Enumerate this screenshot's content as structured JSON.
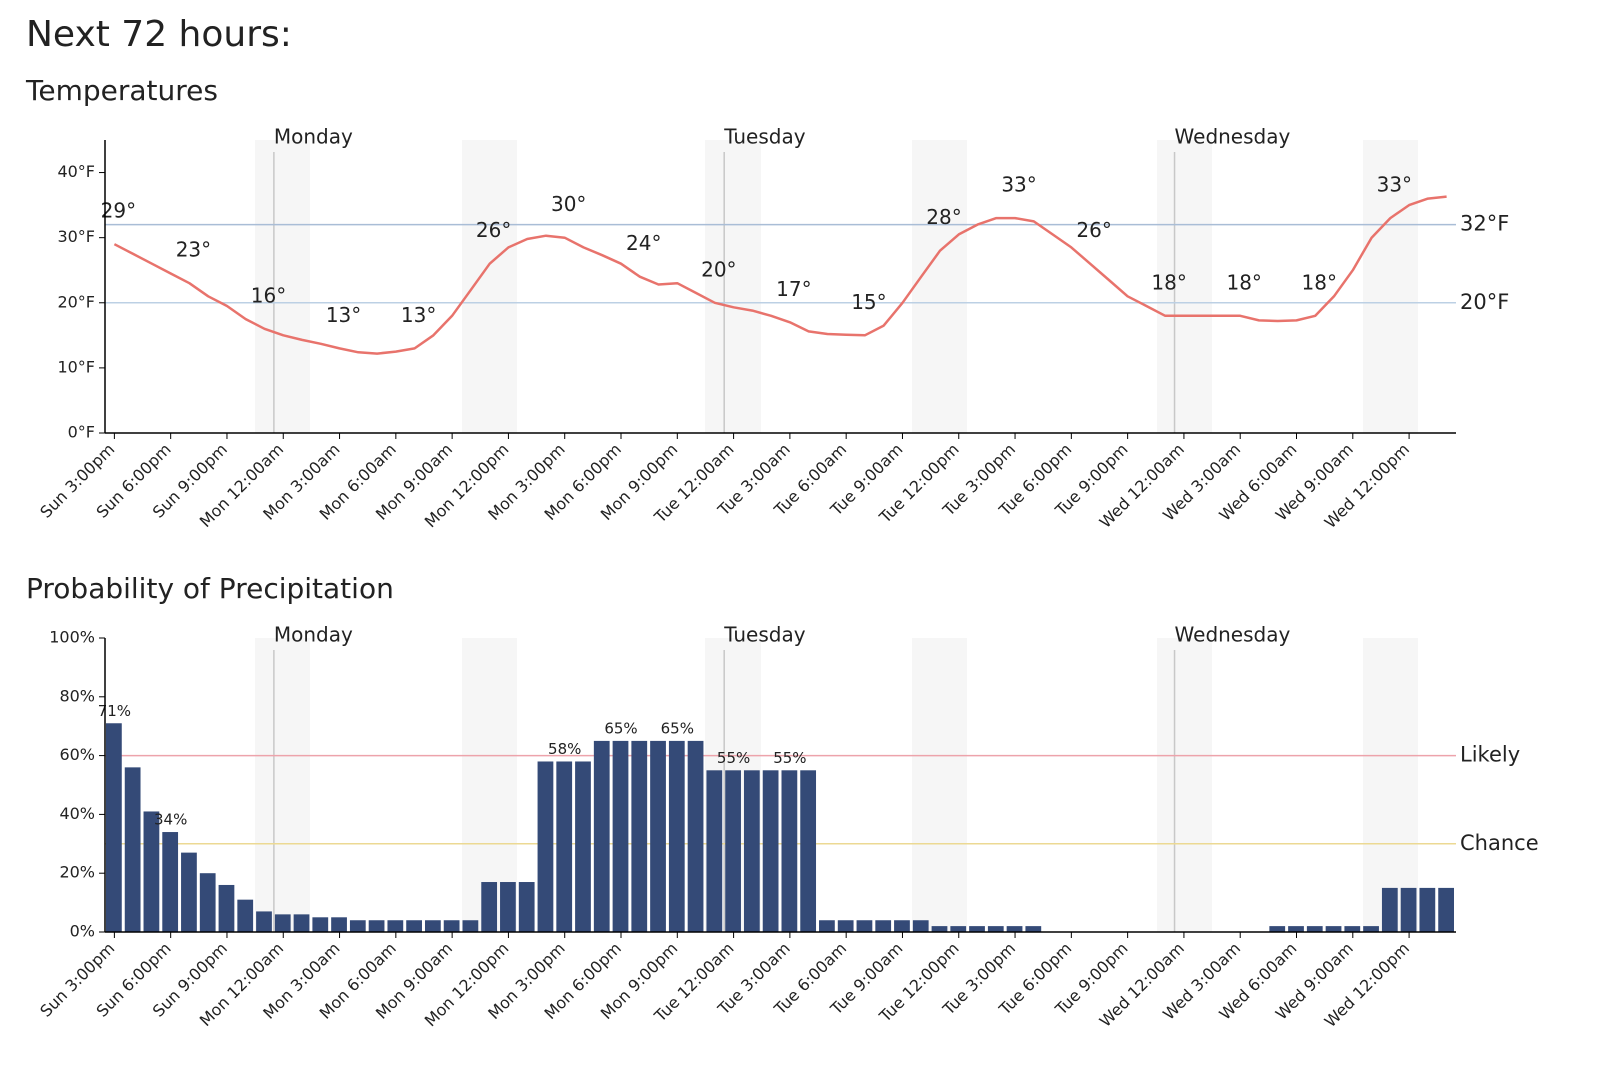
{
  "page_title": "Next 72 hours:",
  "chart_data": [
    {
      "type": "line",
      "title": "Temperatures",
      "color": "#e8736c",
      "categories": [
        "Sun 3:00pm",
        null,
        null,
        "Sun 6:00pm",
        null,
        null,
        "Sun 9:00pm",
        null,
        null,
        "Mon 12:00am",
        null,
        null,
        "Mon 3:00am",
        null,
        null,
        "Mon 6:00am",
        null,
        null,
        "Mon 9:00am",
        null,
        null,
        "Mon 12:00pm",
        null,
        null,
        "Mon 3:00pm",
        null,
        null,
        "Mon 6:00pm",
        null,
        null,
        "Mon 9:00pm",
        null,
        null,
        "Tue 12:00am",
        null,
        null,
        "Tue 3:00am",
        null,
        null,
        "Tue 6:00am",
        null,
        null,
        "Tue 9:00am",
        null,
        null,
        "Tue 12:00pm",
        null,
        null,
        "Tue 3:00pm",
        null,
        null,
        "Tue 6:00pm",
        null,
        null,
        "Tue 9:00pm",
        null,
        null,
        "Wed 12:00am",
        null,
        null,
        "Wed 3:00am",
        null,
        null,
        "Wed 6:00am",
        null,
        null,
        "Wed 9:00am",
        null,
        null,
        "Wed 12:00pm",
        null,
        null
      ],
      "values": [
        29,
        27.5,
        26,
        24.5,
        23,
        21,
        19.5,
        17.5,
        16,
        15,
        14.3,
        13.7,
        13,
        12.4,
        12.2,
        12.5,
        13,
        15,
        18,
        22,
        26,
        28.5,
        29.8,
        30.3,
        30,
        28.5,
        27.3,
        26,
        24,
        22.8,
        23,
        21.5,
        20,
        19.3,
        18.8,
        18,
        17,
        15.6,
        15.2,
        15.1,
        15,
        16.5,
        20,
        24,
        28,
        30.5,
        32,
        33,
        33,
        32.5,
        30.5,
        28.5,
        26,
        23.5,
        21,
        19.5,
        18,
        18,
        18,
        18,
        18,
        17.3,
        17.2,
        17.3,
        18,
        21,
        25,
        30,
        33,
        35,
        36,
        36.3
      ],
      "value_labels": [
        "29°",
        null,
        null,
        null,
        "23°",
        null,
        null,
        null,
        "16°",
        null,
        null,
        null,
        "13°",
        null,
        null,
        null,
        "13°",
        null,
        null,
        null,
        "26°",
        null,
        null,
        null,
        "30°",
        null,
        null,
        null,
        "24°",
        null,
        null,
        null,
        "20°",
        null,
        null,
        null,
        "17°",
        null,
        null,
        null,
        "15°",
        null,
        null,
        null,
        "28°",
        null,
        null,
        null,
        "33°",
        null,
        null,
        null,
        "26°",
        null,
        null,
        null,
        "18°",
        null,
        null,
        null,
        "18°",
        null,
        null,
        null,
        "18°",
        null,
        null,
        null,
        "33°",
        null,
        null,
        null
      ],
      "ylim": [
        0,
        45
      ],
      "yticks": [
        {
          "value": 0,
          "label": "0°F"
        },
        {
          "value": 10,
          "label": "10°F"
        },
        {
          "value": 20,
          "label": "20°F"
        },
        {
          "value": 30,
          "label": "30°F"
        },
        {
          "value": 40,
          "label": "40°F"
        }
      ],
      "reference_lines": [
        {
          "value": 32,
          "label": "32°F",
          "color": "#a9bdd6"
        },
        {
          "value": 20,
          "label": "20°F",
          "color": "#bcd0e4"
        }
      ],
      "day_markers": [
        {
          "at": "Mon 12:00am",
          "label": "Monday"
        },
        {
          "at": "Tue 12:00am",
          "label": "Tuesday"
        },
        {
          "at": "Wed 12:00am",
          "label": "Wednesday"
        }
      ]
    },
    {
      "type": "bar",
      "title": "Probability of Precipitation",
      "color": "#344a77",
      "categories": [
        "Sun 3:00pm",
        null,
        null,
        "Sun 6:00pm",
        null,
        null,
        "Sun 9:00pm",
        null,
        null,
        "Mon 12:00am",
        null,
        null,
        "Mon 3:00am",
        null,
        null,
        "Mon 6:00am",
        null,
        null,
        "Mon 9:00am",
        null,
        null,
        "Mon 12:00pm",
        null,
        null,
        "Mon 3:00pm",
        null,
        null,
        "Mon 6:00pm",
        null,
        null,
        "Mon 9:00pm",
        null,
        null,
        "Tue 12:00am",
        null,
        null,
        "Tue 3:00am",
        null,
        null,
        "Tue 6:00am",
        null,
        null,
        "Tue 9:00am",
        null,
        null,
        "Tue 12:00pm",
        null,
        null,
        "Tue 3:00pm",
        null,
        null,
        "Tue 6:00pm",
        null,
        null,
        "Tue 9:00pm",
        null,
        null,
        "Wed 12:00am",
        null,
        null,
        "Wed 3:00am",
        null,
        null,
        "Wed 6:00am",
        null,
        null,
        "Wed 9:00am",
        null,
        null,
        "Wed 12:00pm",
        null,
        null
      ],
      "values": [
        71,
        56,
        41,
        34,
        27,
        20,
        16,
        11,
        7,
        6,
        6,
        5,
        5,
        4,
        4,
        4,
        4,
        4,
        4,
        4,
        17,
        17,
        17,
        58,
        58,
        58,
        65,
        65,
        65,
        65,
        65,
        65,
        55,
        55,
        55,
        55,
        55,
        55,
        4,
        4,
        4,
        4,
        4,
        4,
        2,
        2,
        2,
        2,
        2,
        2,
        0,
        0,
        0,
        0,
        0,
        0,
        0,
        0,
        0,
        0,
        0,
        0,
        2,
        2,
        2,
        2,
        2,
        2,
        15,
        15,
        15,
        15
      ],
      "value_labels": [
        "71%",
        null,
        null,
        "34%",
        null,
        null,
        null,
        null,
        null,
        null,
        null,
        null,
        null,
        null,
        null,
        null,
        null,
        null,
        null,
        null,
        null,
        null,
        null,
        null,
        "58%",
        null,
        null,
        "65%",
        null,
        null,
        "65%",
        null,
        null,
        "55%",
        null,
        null,
        "55%",
        null,
        null,
        null,
        null,
        null,
        null,
        null,
        null,
        null,
        null,
        null,
        null,
        null,
        null,
        null,
        null,
        null,
        null,
        null,
        null,
        null,
        null,
        null,
        null,
        null,
        null,
        null,
        null,
        null,
        null,
        null,
        null,
        null,
        null,
        null
      ],
      "ylim": [
        0,
        100
      ],
      "yticks": [
        {
          "value": 0,
          "label": "0%"
        },
        {
          "value": 20,
          "label": "20%"
        },
        {
          "value": 40,
          "label": "40%"
        },
        {
          "value": 60,
          "label": "60%"
        },
        {
          "value": 80,
          "label": "80%"
        },
        {
          "value": 100,
          "label": "100%"
        }
      ],
      "reference_lines": [
        {
          "value": 60,
          "label": "Likely",
          "color": "#eda3ab"
        },
        {
          "value": 30,
          "label": "Chance",
          "color": "#ecd993"
        }
      ],
      "day_markers": [
        {
          "at": "Mon 12:00am",
          "label": "Monday"
        },
        {
          "at": "Tue 12:00am",
          "label": "Tuesday"
        },
        {
          "at": "Wed 12:00am",
          "label": "Wednesday"
        }
      ]
    }
  ]
}
